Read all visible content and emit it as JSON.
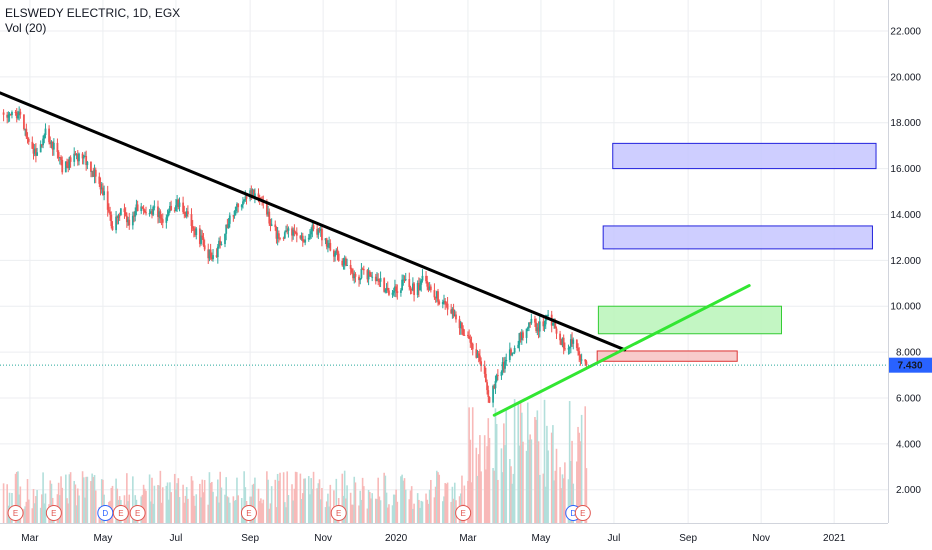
{
  "header": {
    "title": "ELSWEDY ELECTRIC, 1D, EGX",
    "volume_label": "Vol (20)"
  },
  "price_tag": "7.430",
  "colors": {
    "up": "#26a69a",
    "down": "#ef5350",
    "vol_up": "#b2dfdb",
    "vol_down": "#f8b9b8",
    "trend_down": "#000000",
    "trend_up": "#32e632",
    "zone_blue": "#c5c5ff",
    "zone_green": "#b9f5b9",
    "zone_red": "#f7c2c2",
    "grid": "#eceef1",
    "price_tag_bg": "#2962ff"
  },
  "chart_data": {
    "type": "candlestick",
    "x_ticks": [
      "Mar",
      "May",
      "Jul",
      "Sep",
      "Nov",
      "2020",
      "Mar",
      "May",
      "Jul",
      "Sep",
      "Nov",
      "2021"
    ],
    "x_tick_dates": [
      "2019-03-01",
      "2019-05-01",
      "2019-07-01",
      "2019-09-01",
      "2019-11-01",
      "2020-01-01",
      "2020-03-01",
      "2020-05-01",
      "2020-07-01",
      "2020-09-01",
      "2020-11-01",
      "2021-01-01"
    ],
    "x_range": [
      "2019-02-04",
      "2021-02-15"
    ],
    "y_ticks": [
      "2.000",
      "4.000",
      "6.000",
      "8.000",
      "10.000",
      "12.000",
      "14.000",
      "16.000",
      "18.000",
      "20.000",
      "22.000"
    ],
    "y_tick_values": [
      2,
      4,
      6,
      8,
      10,
      12,
      14,
      16,
      18,
      20,
      22
    ],
    "ylim": [
      0.55,
      23.35
    ],
    "last_price": 7.43,
    "price_path": [
      [
        "2019-02-07",
        18.3
      ],
      [
        "2019-02-14",
        18.6
      ],
      [
        "2019-02-21",
        18.2
      ],
      [
        "2019-02-28",
        17.1
      ],
      [
        "2019-03-07",
        16.6
      ],
      [
        "2019-03-14",
        17.5
      ],
      [
        "2019-03-21",
        16.9
      ],
      [
        "2019-03-28",
        16.0
      ],
      [
        "2019-04-04",
        16.3
      ],
      [
        "2019-04-11",
        16.6
      ],
      [
        "2019-04-18",
        16.2
      ],
      [
        "2019-04-25",
        15.7
      ],
      [
        "2019-05-02",
        14.9
      ],
      [
        "2019-05-09",
        13.4
      ],
      [
        "2019-05-16",
        14.1
      ],
      [
        "2019-05-23",
        13.6
      ],
      [
        "2019-05-30",
        14.3
      ],
      [
        "2019-06-06",
        13.9
      ],
      [
        "2019-06-13",
        14.3
      ],
      [
        "2019-06-20",
        13.7
      ],
      [
        "2019-06-27",
        14.2
      ],
      [
        "2019-07-04",
        14.5
      ],
      [
        "2019-07-11",
        13.8
      ],
      [
        "2019-07-18",
        13.2
      ],
      [
        "2019-07-25",
        12.6
      ],
      [
        "2019-08-01",
        12.0
      ],
      [
        "2019-08-08",
        12.9
      ],
      [
        "2019-08-15",
        13.8
      ],
      [
        "2019-08-22",
        14.3
      ],
      [
        "2019-08-29",
        14.8
      ],
      [
        "2019-09-05",
        15.0
      ],
      [
        "2019-09-12",
        14.4
      ],
      [
        "2019-09-19",
        13.6
      ],
      [
        "2019-09-26",
        12.8
      ],
      [
        "2019-10-03",
        13.3
      ],
      [
        "2019-10-10",
        13.0
      ],
      [
        "2019-10-17",
        12.9
      ],
      [
        "2019-10-24",
        13.4
      ],
      [
        "2019-10-31",
        13.1
      ],
      [
        "2019-11-07",
        12.5
      ],
      [
        "2019-11-14",
        12.2
      ],
      [
        "2019-11-21",
        11.7
      ],
      [
        "2019-11-28",
        11.3
      ],
      [
        "2019-12-05",
        11.5
      ],
      [
        "2019-12-12",
        11.2
      ],
      [
        "2019-12-19",
        11.0
      ],
      [
        "2019-12-26",
        10.6
      ],
      [
        "2020-01-02",
        10.8
      ],
      [
        "2020-01-09",
        11.0
      ],
      [
        "2020-01-16",
        10.7
      ],
      [
        "2020-01-23",
        11.1
      ],
      [
        "2020-01-30",
        10.8
      ],
      [
        "2020-02-06",
        10.3
      ],
      [
        "2020-02-13",
        9.9
      ],
      [
        "2020-02-20",
        9.5
      ],
      [
        "2020-02-27",
        8.8
      ],
      [
        "2020-03-05",
        8.1
      ],
      [
        "2020-03-12",
        7.6
      ],
      [
        "2020-03-19",
        6.0
      ],
      [
        "2020-03-26",
        7.0
      ],
      [
        "2020-04-02",
        7.6
      ],
      [
        "2020-04-09",
        8.3
      ],
      [
        "2020-04-16",
        8.8
      ],
      [
        "2020-04-23",
        9.2
      ],
      [
        "2020-04-30",
        9.1
      ],
      [
        "2020-05-07",
        9.5
      ],
      [
        "2020-05-14",
        8.9
      ],
      [
        "2020-05-21",
        8.2
      ],
      [
        "2020-05-28",
        8.6
      ],
      [
        "2020-06-04",
        7.6
      ],
      [
        "2020-06-08",
        7.43
      ]
    ],
    "volume_max": 9.0,
    "earnings_markers": [
      {
        "label": "E",
        "date": "2019-02-17"
      },
      {
        "label": "E",
        "date": "2019-03-21"
      },
      {
        "label": "D",
        "date": "2019-05-03"
      },
      {
        "label": "E",
        "date": "2019-05-16"
      },
      {
        "label": "E",
        "date": "2019-05-30"
      },
      {
        "label": "E",
        "date": "2019-08-31"
      },
      {
        "label": "E",
        "date": "2019-11-14"
      },
      {
        "label": "E",
        "date": "2020-02-26"
      },
      {
        "label": "D",
        "date": "2020-05-28"
      },
      {
        "label": "E",
        "date": "2020-06-05"
      }
    ],
    "trendlines": [
      {
        "name": "down",
        "from": [
          "2019-02-04",
          19.3
        ],
        "to": [
          "2020-07-10",
          8.1
        ]
      },
      {
        "name": "up",
        "from": [
          "2020-03-23",
          5.25
        ],
        "to": [
          "2020-10-22",
          10.9
        ]
      }
    ],
    "zones": [
      {
        "name": "blue-upper",
        "x0": "2020-06-30",
        "x1": "2021-02-05",
        "y0": 16.0,
        "y1": 17.1
      },
      {
        "name": "blue-lower",
        "x0": "2020-06-22",
        "x1": "2021-02-02",
        "y0": 12.5,
        "y1": 13.5
      },
      {
        "name": "green",
        "x0": "2020-06-18",
        "x1": "2020-11-18",
        "y0": 8.8,
        "y1": 10.0
      },
      {
        "name": "red",
        "x0": "2020-06-17",
        "x1": "2020-10-12",
        "y0": 7.6,
        "y1": 8.05
      }
    ]
  }
}
